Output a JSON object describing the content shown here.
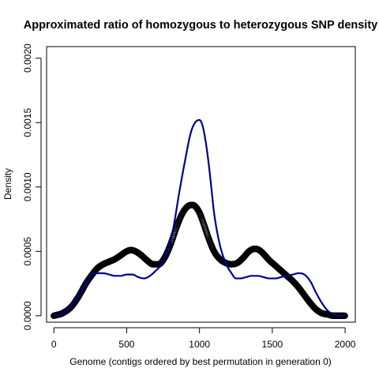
{
  "chart_data": {
    "type": "line",
    "title": "Approximated ratio of homozygous to heterozygous SNP density",
    "xlabel": "Genome (contigs ordered by best permutation in generation 0)",
    "ylabel": "Density",
    "xlim": [
      -50,
      2070
    ],
    "ylim": [
      -5e-05,
      0.00209
    ],
    "x_ticks": [
      0,
      500,
      1000,
      1500,
      2000
    ],
    "x_tick_labels": [
      "0",
      "500",
      "1000",
      "1500",
      "2000"
    ],
    "y_ticks": [
      0,
      0.0005,
      0.001,
      0.0015,
      0.002
    ],
    "y_tick_labels": [
      "0.0000",
      "0.0005",
      "0.0010",
      "0.0015",
      "0.0020"
    ],
    "grid": false,
    "legend": "none",
    "series": [
      {
        "style": "points-open-circles",
        "color": "#000000",
        "x": [
          0,
          60,
          120,
          170,
          220,
          270,
          300,
          340,
          380,
          420,
          460,
          500,
          530,
          560,
          600,
          640,
          680,
          720,
          760,
          800,
          840,
          880,
          920,
          950,
          970,
          1000,
          1030,
          1060,
          1100,
          1140,
          1180,
          1220,
          1260,
          1300,
          1340,
          1380,
          1410,
          1440,
          1480,
          1520,
          1560,
          1600,
          1640,
          1680,
          1720,
          1760,
          1800,
          1840,
          1880,
          1920,
          1960,
          2000
        ],
        "y": [
          0.0,
          2e-05,
          7e-05,
          0.00015,
          0.00025,
          0.00033,
          0.00037,
          0.0004,
          0.00042,
          0.00044,
          0.00047,
          0.0005,
          0.00051,
          0.0005,
          0.00047,
          0.00043,
          0.0004,
          0.0004,
          0.00045,
          0.00055,
          0.00068,
          0.00079,
          0.00085,
          0.00086,
          0.00085,
          0.0008,
          0.00071,
          0.00061,
          0.0005,
          0.00044,
          0.00041,
          0.0004,
          0.00041,
          0.00045,
          0.0005,
          0.00052,
          0.00051,
          0.00048,
          0.00043,
          0.00039,
          0.00035,
          0.00031,
          0.00027,
          0.00022,
          0.00016,
          0.0001,
          5e-05,
          2e-05,
          1e-05,
          0.0,
          0.0,
          0.0
        ]
      },
      {
        "style": "line",
        "color": "#00008b",
        "x": [
          0,
          60,
          120,
          170,
          220,
          260,
          300,
          340,
          380,
          420,
          460,
          500,
          540,
          580,
          620,
          660,
          700,
          740,
          780,
          820,
          860,
          900,
          940,
          970,
          1000,
          1020,
          1040,
          1060,
          1080,
          1100,
          1140,
          1180,
          1220,
          1250,
          1280,
          1320,
          1360,
          1400,
          1440,
          1480,
          1520,
          1560,
          1600,
          1640,
          1680,
          1720,
          1760,
          1800,
          1840,
          1880,
          1920,
          1960,
          2000
        ],
        "y": [
          0.0,
          2e-05,
          8e-05,
          0.00016,
          0.00025,
          0.00032,
          0.00033,
          0.00033,
          0.00032,
          0.00031,
          0.00031,
          0.00032,
          0.00032,
          0.0003,
          0.00029,
          0.00031,
          0.00035,
          0.0004,
          0.0005,
          0.00068,
          0.00095,
          0.0012,
          0.00142,
          0.0015,
          0.00152,
          0.00148,
          0.00137,
          0.00121,
          0.00101,
          0.0008,
          0.00055,
          0.00041,
          0.00033,
          0.00029,
          0.00029,
          0.0003,
          0.00031,
          0.00031,
          0.0003,
          0.00029,
          0.00029,
          0.0003,
          0.00031,
          0.00032,
          0.00033,
          0.00032,
          0.00027,
          0.00018,
          0.0001,
          4e-05,
          1e-05,
          0.0,
          0.0
        ]
      }
    ]
  }
}
